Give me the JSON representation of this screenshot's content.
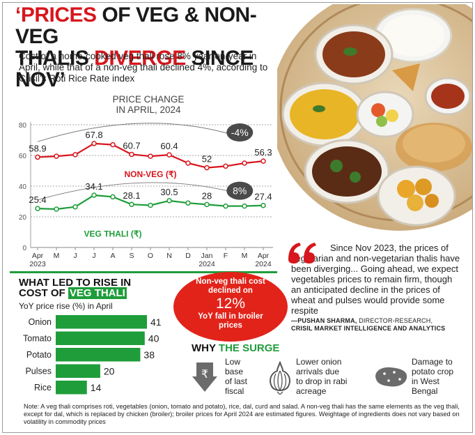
{
  "headline": {
    "part1": "‘PRICES",
    "part2": " OF VEG & NON-VEG",
    "part3": "THALIS ",
    "part4": "DIVERGE",
    "part5": " SINCE NOV’"
  },
  "subhead": "Cost of a home-cooked veg thali rose 8% year-on-year in April, while that of a non-veg thali declined 4%, according to Crisil’s Roti Rice Rate index",
  "chart_data": [
    {
      "type": "line",
      "title": "PRICE CHANGE",
      "subtitle": "IN APRIL, 2024",
      "x": [
        "Apr",
        "M",
        "J",
        "J",
        "A",
        "S",
        "O",
        "N",
        "D",
        "Jan",
        "F",
        "M",
        "Apr"
      ],
      "x_years": {
        "0": "2023",
        "9": "2024",
        "12": "2024"
      },
      "ylim": [
        0,
        80
      ],
      "yticks": [
        0,
        20,
        40,
        60,
        80
      ],
      "series": [
        {
          "name": "NON-VEG (₹)",
          "color": "#d7161d",
          "values": [
            58.9,
            59.5,
            60.5,
            67.8,
            67.0,
            60.7,
            59.5,
            60.4,
            55.0,
            52.0,
            53.0,
            55.0,
            56.3
          ],
          "labels": [
            {
              "i": 0,
              "text": "58.9"
            },
            {
              "i": 3,
              "text": "67.8"
            },
            {
              "i": 5,
              "text": "60.7"
            },
            {
              "i": 7,
              "text": "60.4"
            },
            {
              "i": 9,
              "text": "52"
            },
            {
              "i": 12,
              "text": "56.3"
            }
          ]
        },
        {
          "name": "VEG THALI (₹)",
          "color": "#1f9d3a",
          "values": [
            25.4,
            25.0,
            26.5,
            34.1,
            33.0,
            28.1,
            27.5,
            30.5,
            29.0,
            28.0,
            27.0,
            27.0,
            27.4
          ],
          "labels": [
            {
              "i": 0,
              "text": "25.4"
            },
            {
              "i": 3,
              "text": "34.1"
            },
            {
              "i": 5,
              "text": "28.1"
            },
            {
              "i": 7,
              "text": "30.5"
            },
            {
              "i": 9,
              "text": "28"
            },
            {
              "i": 12,
              "text": "27.4"
            }
          ]
        }
      ],
      "badges": [
        {
          "text": "-4%",
          "series": "NON-VEG (₹)"
        },
        {
          "text": "8%",
          "series": "VEG THALI (₹)"
        }
      ],
      "grid": true
    },
    {
      "type": "bar",
      "orientation": "horizontal",
      "title": "WHAT LED TO RISE IN COST OF VEG THALI",
      "subtitle": "YoY price rise (%) in April",
      "categories": [
        "Onion",
        "Tomato",
        "Potato",
        "Pulses",
        "Rice"
      ],
      "values": [
        41,
        40,
        38,
        20,
        14
      ],
      "color": "#1f9d3a"
    }
  ],
  "bars_title": {
    "line1": "WHAT LED TO RISE IN",
    "line2a": "COST OF ",
    "line2b": "VEG THALI"
  },
  "bars_subtitle": "YoY price rise (%) in April",
  "circle": {
    "line1": "Non-veg thali cost",
    "line2": "declined on",
    "pct": "12%",
    "line3": "YoY fall in broiler",
    "line4": "prices"
  },
  "quote": {
    "text": "Since Nov 2023, the prices of vegetarian and non-vegetarian thalis have been diverging... Going ahead, we expect vegetables prices to remain firm, though an anticipated decline in the prices of wheat and pulses would provide some respite",
    "name": "—PUSHAN SHARMA,",
    "role": " DIRECTOR-RESEARCH,",
    "org": "CRISIL MARKET INTELLIGENCE AND ANALYTICS"
  },
  "why": {
    "a": "WHY ",
    "b": "THE SURGE"
  },
  "reasons": [
    {
      "lines": [
        "Low",
        "base",
        "of last",
        "fiscal"
      ],
      "icon": "rupee-down-arrow-icon"
    },
    {
      "lines": [
        "Lower onion",
        "arrivals due",
        "to drop in rabi",
        "acreage"
      ],
      "icon": "onion-icon"
    },
    {
      "lines": [
        "Damage to",
        "potato crop",
        "in West",
        "Bengal"
      ],
      "icon": "potato-icon"
    }
  ],
  "note": "Note: A veg thali comprises roti, vegetables (onion, tomato and potato), rice, dal, curd and salad. A non-veg thali has the same elements as the veg thali, except for dal, which is replaced by chicken (broiler); broiler prices for April 2024 are estimated figures. Weightage of ingredients does not vary based on volatility in commodity prices",
  "colors": {
    "red": "#d7161d",
    "green": "#1f9d3a",
    "circle": "#e2231a",
    "badge": "#4a4a4a"
  }
}
